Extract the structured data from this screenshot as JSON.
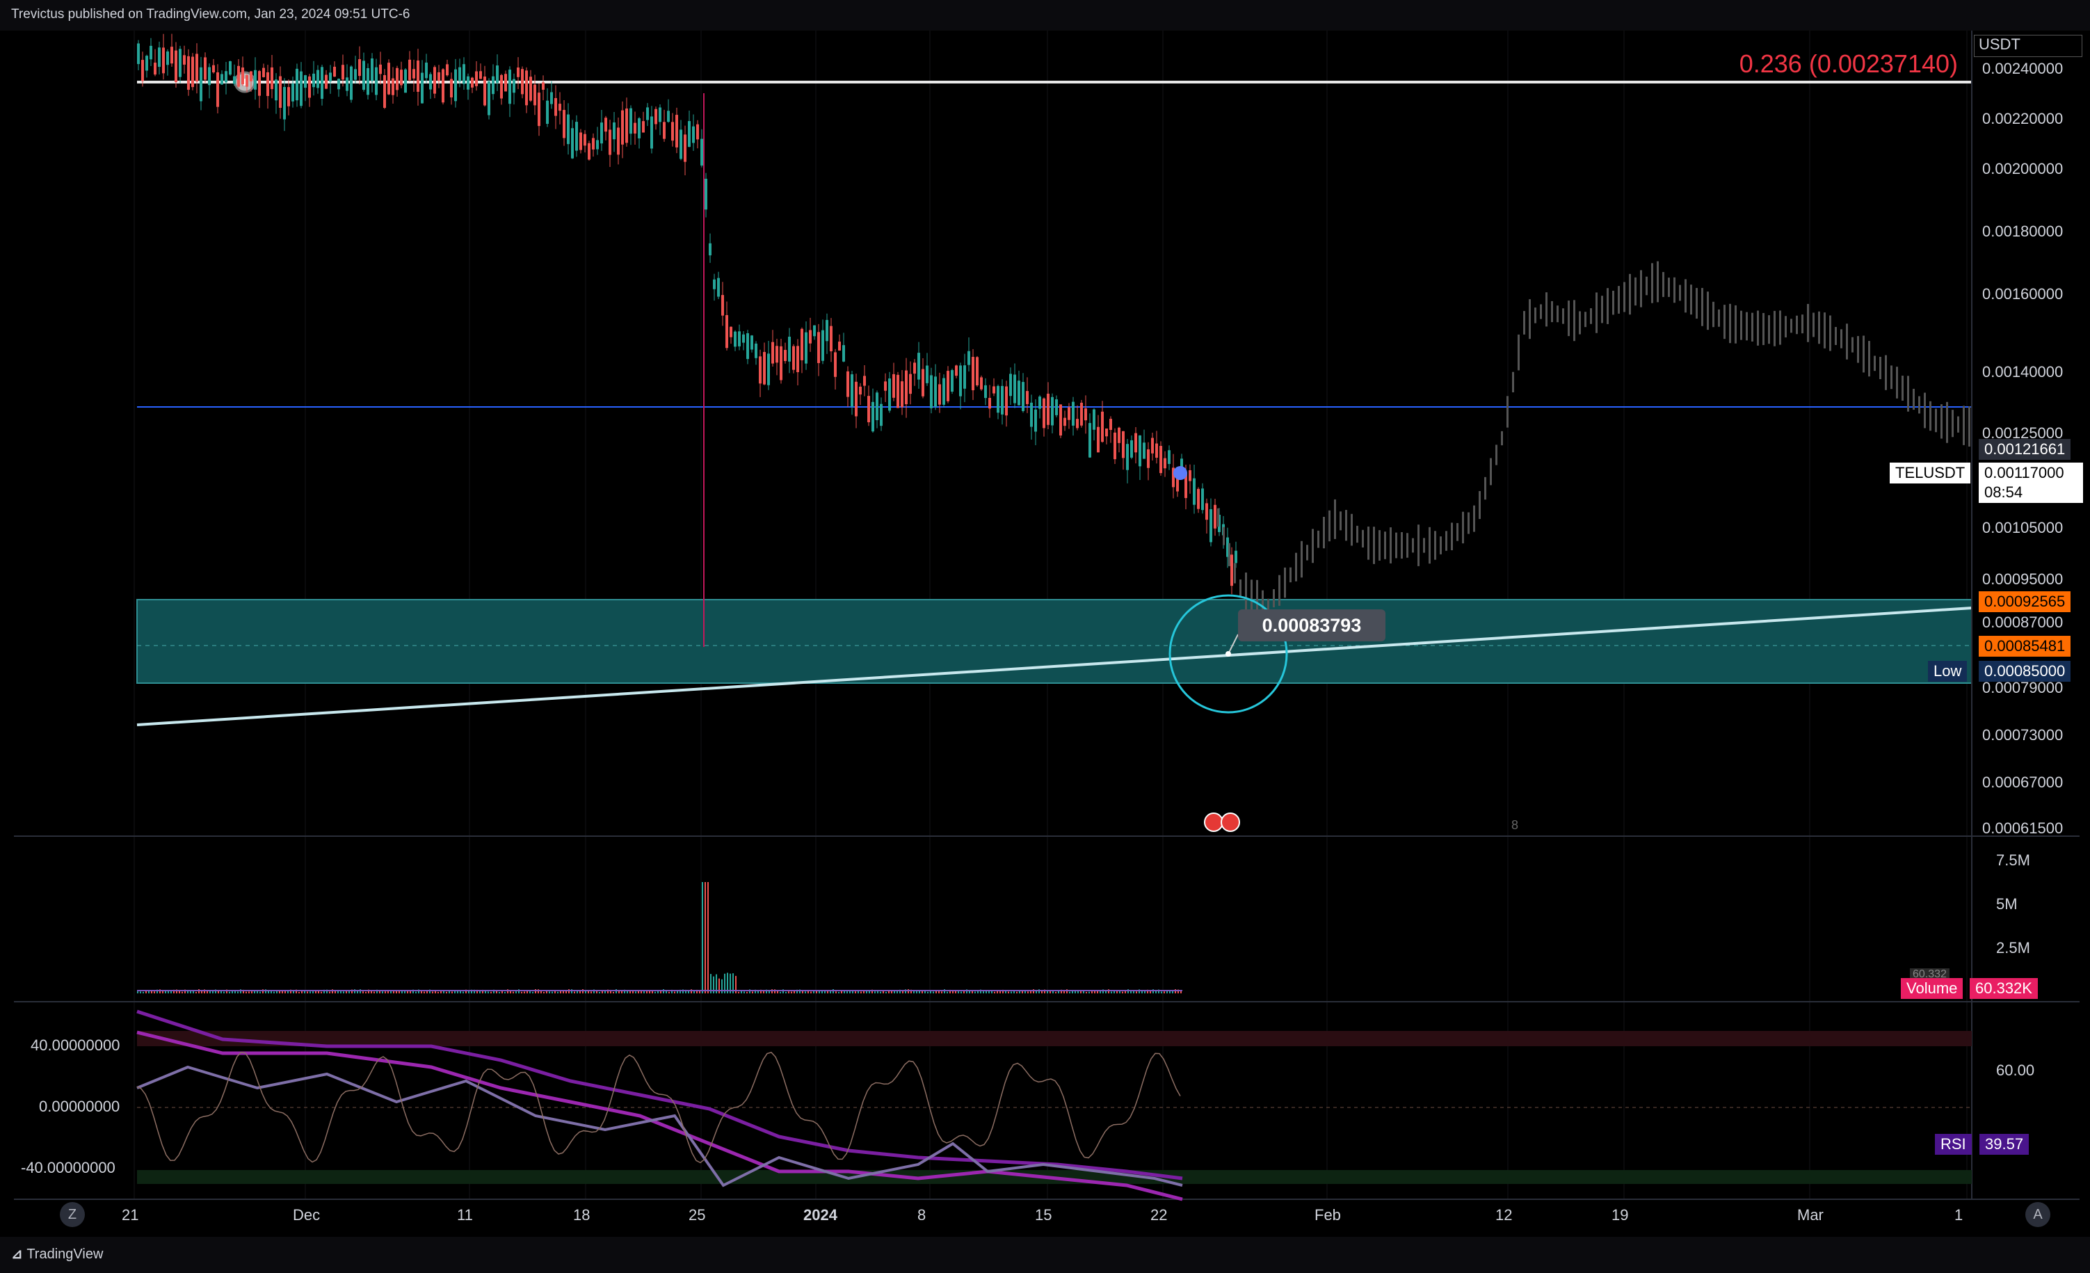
{
  "header": {
    "published": "Trevictus published on TradingView.com, Jan 23, 2024 09:51 UTC-6"
  },
  "price_axis": {
    "currency": "USDT",
    "ticks": [
      "0.00240000",
      "0.00220000",
      "0.00200000",
      "0.00180000",
      "0.00160000",
      "0.00140000",
      "0.00125000",
      "0.00105000",
      "0.00095000",
      "0.00087000",
      "0.00079000",
      "0.00073000",
      "0.00067000",
      "0.00061500"
    ],
    "labels": {
      "last_price": "0.00121661",
      "symbol": "TELUSDT",
      "symbol_price": "0.00117000",
      "countdown": "08:54",
      "orange1": "0.00092565",
      "orange2": "0.00085481",
      "low_label": "Low",
      "low_value": "0.00085000"
    }
  },
  "fib": {
    "label": "0.236 (0.00237140)"
  },
  "annotation": {
    "price_bubble": "0.00083793"
  },
  "time_axis": {
    "labels": [
      "21",
      "Dec",
      "11",
      "18",
      "25",
      "2024",
      "8",
      "15",
      "22",
      "Feb",
      "12",
      "19",
      "Mar",
      "1"
    ],
    "left_button": "Z",
    "right_button": "A",
    "event_marker": "8"
  },
  "volume_pane": {
    "ticks": [
      "7.5M",
      "5M",
      "2.5M"
    ],
    "legend_name": "Volume",
    "legend_value": "60.332K",
    "hidden_value": "60.332"
  },
  "osc_pane": {
    "left_ticks": [
      "40.00000000",
      "0.00000000",
      "-40.00000000"
    ],
    "right_tick": "60.00",
    "rsi_name": "RSI",
    "rsi_value": "39.57"
  },
  "footer": {
    "brand": "TradingView"
  },
  "colors": {
    "background": "#000000",
    "zone": "#0f4f52",
    "zone_border": "#2f8f93",
    "trendline": "#c8e8ee",
    "fib_text": "#f23645",
    "blue_line": "#2962ff",
    "orange_tag": "#ff6d00",
    "volume_tag": "#e91e63",
    "rsi_tag": "#4a148c",
    "purple": "#9c27b0"
  }
}
